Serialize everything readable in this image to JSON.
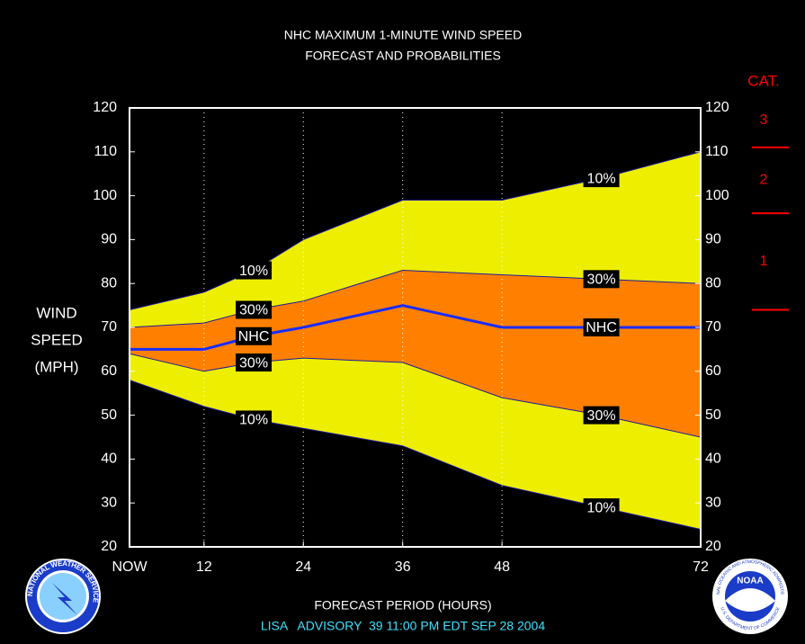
{
  "chart_data": {
    "type": "probability-band",
    "title": "NHC MAXIMUM 1-MINUTE WIND SPEED",
    "subtitle": "FORECAST AND PROBABILITIES",
    "y_label": [
      "WIND",
      "SPEED",
      "(MPH)"
    ],
    "x_label": "FORECAST PERIOD (HOURS)",
    "footer": "LISA   ADVISORY  39 11:00 PM EDT SEP 28 2004",
    "x": [
      3,
      12,
      18,
      24,
      36,
      48,
      60,
      72
    ],
    "series": [
      {
        "name": "10%",
        "color": "#1c1c9c",
        "values": [
          74,
          78,
          83,
          90,
          99,
          99,
          104,
          110
        ]
      },
      {
        "name": "30%",
        "color": "#1c1c9c",
        "values": [
          70,
          71,
          74,
          76,
          83,
          82,
          81,
          80
        ]
      },
      {
        "name": "NHC",
        "color": "#1a2cff",
        "values": [
          65,
          65,
          68,
          70,
          75,
          70,
          70,
          70
        ]
      },
      {
        "name": "30%",
        "color": "#1c1c9c",
        "values": [
          64,
          60,
          62,
          63,
          62,
          54,
          50,
          45
        ]
      },
      {
        "name": "10%",
        "color": "#1c1c9c",
        "values": [
          58,
          52,
          49,
          47,
          43,
          34,
          29,
          24
        ]
      }
    ],
    "bands": [
      {
        "series": [
          0,
          4
        ],
        "color": "#eeee00"
      },
      {
        "series": [
          1,
          3
        ],
        "color": "#ff8000"
      }
    ],
    "xlim": [
      3,
      72
    ],
    "xticks": [
      {
        "value": 3,
        "label": "NOW"
      },
      12,
      24,
      36,
      48,
      72
    ],
    "ylim": [
      20,
      120
    ],
    "yticks": [
      20,
      30,
      40,
      50,
      60,
      70,
      80,
      90,
      100,
      110,
      120
    ],
    "grid": true,
    "categories_title": "CAT.",
    "category_color": "#ff0000",
    "categories": [
      "1",
      "2",
      "3"
    ],
    "category_thresholds": [
      74,
      96,
      111
    ]
  },
  "logos": {
    "nws": "NATIONAL WEATHER SERVICE",
    "noaa": "NOAA",
    "noaa_ring": "NATIONAL OCEANIC AND ATMOSPHERIC ADMINISTRATION",
    "noaa_dept": "U.S. DEPARTMENT OF COMMERCE"
  }
}
